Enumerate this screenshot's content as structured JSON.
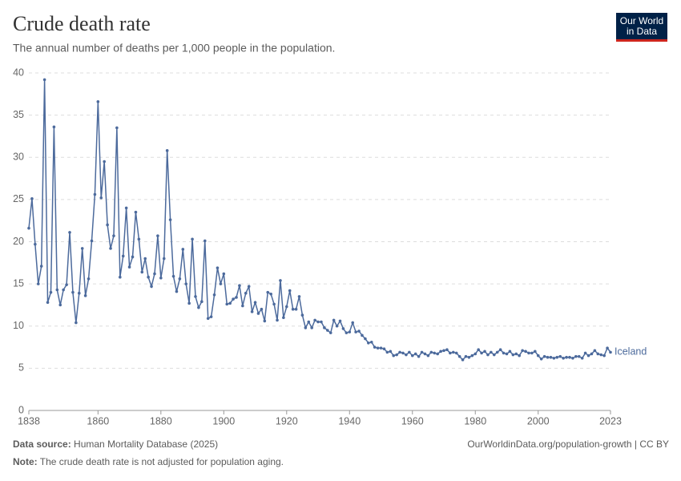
{
  "chart_data": {
    "type": "line",
    "title": "Crude death rate",
    "subtitle": "The annual number of deaths per 1,000 people in the population.",
    "source_label": "Data source:",
    "source": "Human Mortality Database (2025)",
    "url": "OurWorldinData.org/population-growth | CC BY",
    "note_label": "Note:",
    "note": "The crude death rate is not adjusted for population aging.",
    "logo": [
      "Our World",
      "in Data"
    ],
    "x": [
      1838,
      1839,
      1840,
      1841,
      1842,
      1843,
      1844,
      1845,
      1846,
      1847,
      1848,
      1849,
      1850,
      1851,
      1852,
      1853,
      1854,
      1855,
      1856,
      1857,
      1858,
      1859,
      1860,
      1861,
      1862,
      1863,
      1864,
      1865,
      1866,
      1867,
      1868,
      1869,
      1870,
      1871,
      1872,
      1873,
      1874,
      1875,
      1876,
      1877,
      1878,
      1879,
      1880,
      1881,
      1882,
      1883,
      1884,
      1885,
      1886,
      1887,
      1888,
      1889,
      1890,
      1891,
      1892,
      1893,
      1894,
      1895,
      1896,
      1897,
      1898,
      1899,
      1900,
      1901,
      1902,
      1903,
      1904,
      1905,
      1906,
      1907,
      1908,
      1909,
      1910,
      1911,
      1912,
      1913,
      1914,
      1915,
      1916,
      1917,
      1918,
      1919,
      1920,
      1921,
      1922,
      1923,
      1924,
      1925,
      1926,
      1927,
      1928,
      1929,
      1930,
      1931,
      1932,
      1933,
      1934,
      1935,
      1936,
      1937,
      1938,
      1939,
      1940,
      1941,
      1942,
      1943,
      1944,
      1945,
      1946,
      1947,
      1948,
      1949,
      1950,
      1951,
      1952,
      1953,
      1954,
      1955,
      1956,
      1957,
      1958,
      1959,
      1960,
      1961,
      1962,
      1963,
      1964,
      1965,
      1966,
      1967,
      1968,
      1969,
      1970,
      1971,
      1972,
      1973,
      1974,
      1975,
      1976,
      1977,
      1978,
      1979,
      1980,
      1981,
      1982,
      1983,
      1984,
      1985,
      1986,
      1987,
      1988,
      1989,
      1990,
      1991,
      1992,
      1993,
      1994,
      1995,
      1996,
      1997,
      1998,
      1999,
      2000,
      2001,
      2002,
      2003,
      2004,
      2005,
      2006,
      2007,
      2008,
      2009,
      2010,
      2011,
      2012,
      2013,
      2014,
      2015,
      2016,
      2017,
      2018,
      2019,
      2020,
      2021,
      2022,
      2023
    ],
    "series": [
      {
        "name": "Iceland",
        "color": "#4c6a9c",
        "values": [
          21.6,
          25.1,
          19.7,
          15.0,
          17.1,
          39.2,
          12.8,
          14.0,
          33.6,
          14.3,
          12.5,
          14.3,
          14.9,
          21.1,
          14.0,
          10.4,
          13.9,
          19.2,
          13.6,
          15.6,
          20.1,
          25.6,
          36.6,
          25.2,
          29.5,
          22.0,
          19.2,
          20.7,
          33.5,
          15.8,
          18.3,
          24.0,
          17.0,
          18.2,
          23.5,
          20.3,
          16.4,
          18.0,
          15.8,
          14.7,
          16.2,
          20.7,
          15.7,
          18.0,
          30.8,
          22.6,
          15.9,
          14.1,
          15.6,
          19.1,
          15.0,
          12.7,
          20.3,
          13.5,
          12.2,
          12.9,
          20.1,
          10.9,
          11.1,
          13.7,
          16.9,
          15.0,
          16.2,
          12.6,
          12.7,
          13.2,
          13.4,
          14.8,
          12.4,
          13.9,
          14.7,
          11.7,
          12.8,
          11.5,
          12.0,
          10.6,
          14.0,
          13.8,
          12.6,
          10.7,
          15.4,
          11.0,
          12.3,
          14.2,
          12.0,
          12.0,
          13.5,
          11.3,
          9.8,
          10.5,
          9.8,
          10.7,
          10.5,
          10.5,
          9.8,
          9.5,
          9.2,
          10.7,
          10.0,
          10.6,
          9.7,
          9.2,
          9.3,
          10.4,
          9.3,
          9.4,
          8.9,
          8.5,
          8.0,
          8.1,
          7.5,
          7.4,
          7.4,
          7.3,
          6.9,
          7.0,
          6.5,
          6.6,
          6.9,
          6.8,
          6.6,
          6.9,
          6.5,
          6.7,
          6.4,
          6.9,
          6.7,
          6.5,
          6.9,
          6.8,
          6.7,
          7.0,
          7.1,
          7.2,
          6.8,
          6.9,
          6.8,
          6.4,
          6.0,
          6.4,
          6.3,
          6.5,
          6.7,
          7.2,
          6.8,
          7.0,
          6.6,
          6.9,
          6.6,
          6.9,
          7.2,
          6.8,
          6.7,
          7.0,
          6.6,
          6.7,
          6.5,
          7.1,
          7.0,
          6.8,
          6.8,
          7.0,
          6.5,
          6.1,
          6.4,
          6.3,
          6.3,
          6.2,
          6.3,
          6.4,
          6.2,
          6.3,
          6.3,
          6.2,
          6.4,
          6.4,
          6.2,
          6.8,
          6.5,
          6.7,
          7.1,
          6.7,
          6.6,
          6.5,
          7.4,
          6.9
        ]
      }
    ],
    "xlim": [
      1838,
      2023
    ],
    "xticks": [
      1838,
      1860,
      1880,
      1900,
      1920,
      1940,
      1960,
      1980,
      2000,
      2023
    ],
    "ylim": [
      0,
      40
    ],
    "yticks": [
      0,
      5,
      10,
      15,
      20,
      25,
      30,
      35,
      40
    ],
    "grid": true
  }
}
